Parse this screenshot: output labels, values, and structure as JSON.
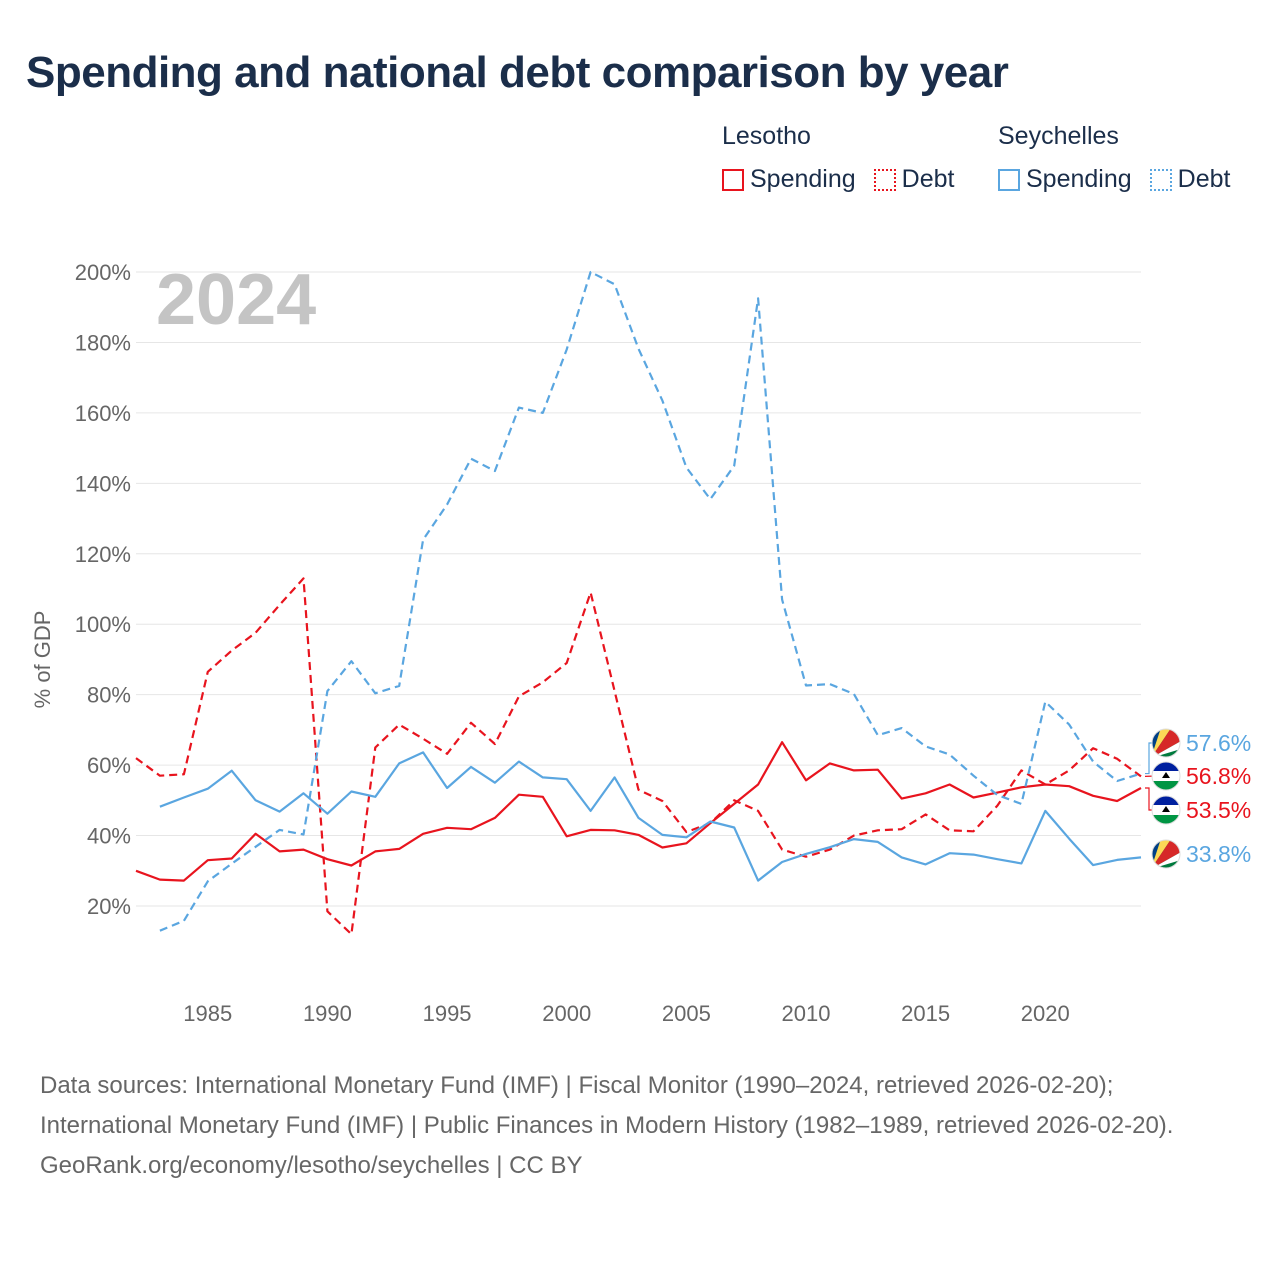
{
  "title": "Spending and national debt comparison by year",
  "legend": {
    "groups": [
      {
        "name": "Lesotho",
        "items": [
          {
            "label": "Spending",
            "style": "solid",
            "color": "#e8141e"
          },
          {
            "label": "Debt",
            "style": "dotted",
            "color": "#e8141e"
          }
        ]
      },
      {
        "name": "Seychelles",
        "items": [
          {
            "label": "Spending",
            "style": "solid",
            "color": "#5aa6e0"
          },
          {
            "label": "Debt",
            "style": "dotted",
            "color": "#5aa6e0"
          }
        ]
      }
    ]
  },
  "colors": {
    "lesotho": "#e8141e",
    "seychelles": "#5aa6e0",
    "year_watermark": "#c4c4c4"
  },
  "chart_data": {
    "type": "line",
    "year_label": "2024",
    "ylabel": "% of GDP",
    "ylim": [
      0,
      200
    ],
    "xlim": [
      1982,
      2024
    ],
    "yticks": [
      20,
      40,
      60,
      80,
      100,
      120,
      140,
      160,
      180,
      200
    ],
    "ytick_labels": [
      "20%",
      "40%",
      "60%",
      "80%",
      "100%",
      "120%",
      "140%",
      "160%",
      "180%",
      "200%"
    ],
    "xticks": [
      1985,
      1990,
      1995,
      2000,
      2005,
      2010,
      2015,
      2020
    ],
    "xtick_labels": [
      "1985",
      "1990",
      "1995",
      "2000",
      "2005",
      "2010",
      "2015",
      "2020"
    ],
    "series": [
      {
        "name": "Lesotho Spending",
        "country": "Lesotho",
        "metric": "Spending",
        "style": "solid",
        "color": "#e8141e",
        "x": [
          1982,
          1983,
          1984,
          1985,
          1986,
          1987,
          1988,
          1989,
          1990,
          1991,
          1992,
          1993,
          1994,
          1995,
          1996,
          1997,
          1998,
          1999,
          2000,
          2001,
          2002,
          2003,
          2004,
          2005,
          2006,
          2007,
          2008,
          2009,
          2010,
          2011,
          2012,
          2013,
          2014,
          2015,
          2016,
          2017,
          2018,
          2019,
          2020,
          2021,
          2022,
          2023,
          2024
        ],
        "values": [
          30,
          27.5,
          27.2,
          33,
          33.5,
          40.5,
          35.5,
          36,
          33.3,
          31.5,
          35.5,
          36.2,
          40.5,
          42.2,
          41.8,
          45,
          51.6,
          51,
          39.8,
          41.6,
          41.5,
          40.2,
          36.6,
          37.8,
          43.5,
          49,
          54.5,
          66.5,
          55.7,
          60.5,
          58.5,
          58.7,
          50.5,
          52,
          54.5,
          50.8,
          52.2,
          53.7,
          54.5,
          54,
          51.3,
          49.8,
          53.5
        ]
      },
      {
        "name": "Lesotho Debt",
        "country": "Lesotho",
        "metric": "Debt",
        "style": "dotted",
        "color": "#e8141e",
        "x": [
          1982,
          1983,
          1984,
          1985,
          1986,
          1987,
          1988,
          1989,
          1990,
          1991,
          1992,
          1993,
          1994,
          1995,
          1996,
          1997,
          1998,
          1999,
          2000,
          2001,
          2002,
          2003,
          2004,
          2005,
          2006,
          2007,
          2008,
          2009,
          2010,
          2011,
          2012,
          2013,
          2014,
          2015,
          2016,
          2017,
          2018,
          2019,
          2020,
          2021,
          2022,
          2023,
          2024
        ],
        "values": [
          62,
          57,
          57.4,
          86.5,
          92.5,
          97.6,
          105.5,
          113,
          18.5,
          12,
          65,
          71.5,
          67.5,
          63.2,
          72,
          66,
          79.5,
          83.5,
          89,
          109,
          81,
          53,
          49.8,
          41,
          43.5,
          50,
          47,
          36,
          34,
          36,
          40,
          41.5,
          41.8,
          46,
          41.5,
          41.2,
          48.5,
          58.5,
          54.5,
          58.5,
          64.8,
          61.8,
          56.8
        ]
      },
      {
        "name": "Seychelles Spending",
        "country": "Seychelles",
        "metric": "Spending",
        "style": "solid",
        "color": "#5aa6e0",
        "x": [
          1983,
          1984,
          1985,
          1986,
          1987,
          1988,
          1989,
          1990,
          1991,
          1992,
          1993,
          1994,
          1995,
          1996,
          1997,
          1998,
          1999,
          2000,
          2001,
          2002,
          2003,
          2004,
          2005,
          2006,
          2007,
          2008,
          2009,
          2010,
          2011,
          2012,
          2013,
          2014,
          2015,
          2016,
          2017,
          2018,
          2019,
          2020,
          2021,
          2022,
          2023,
          2024
        ],
        "values": [
          48.2,
          50.8,
          53.3,
          58.4,
          50,
          46.8,
          52,
          46.2,
          52.5,
          51,
          60.5,
          63.6,
          53.5,
          59.5,
          55,
          61,
          56.5,
          56,
          47,
          56.5,
          45,
          40.2,
          39.5,
          44,
          42.3,
          27.2,
          32.5,
          34.8,
          36.7,
          39,
          38.2,
          33.8,
          31.8,
          35,
          34.6,
          33.3,
          32.1,
          47,
          39.1,
          31.6,
          33.1,
          33.8
        ]
      },
      {
        "name": "Seychelles Debt",
        "country": "Seychelles",
        "metric": "Debt",
        "style": "dotted",
        "color": "#5aa6e0",
        "x": [
          1983,
          1984,
          1985,
          1986,
          1987,
          1988,
          1989,
          1990,
          1991,
          1992,
          1993,
          1994,
          1995,
          1996,
          1997,
          1998,
          1999,
          2000,
          2001,
          2002,
          2003,
          2004,
          2005,
          2006,
          2007,
          2008,
          2009,
          2010,
          2011,
          2012,
          2013,
          2014,
          2015,
          2016,
          2017,
          2018,
          2019,
          2020,
          2021,
          2022,
          2023,
          2024
        ],
        "values": [
          13,
          15.8,
          27,
          32,
          36.8,
          41.6,
          40.3,
          81,
          89.5,
          80.4,
          82.5,
          124,
          134,
          147,
          143.5,
          161.5,
          160,
          178,
          200,
          196.5,
          178.2,
          163.5,
          144.5,
          135.5,
          145,
          192.5,
          107,
          82.6,
          83,
          80.2,
          68.5,
          70.5,
          65.3,
          63,
          57,
          51.5,
          49,
          78,
          71.5,
          61,
          55.5,
          57.6
        ]
      }
    ],
    "end_labels": [
      {
        "text": "57.6%",
        "value": 57.6,
        "color": "#5aa6e0",
        "flag": "seychelles"
      },
      {
        "text": "56.8%",
        "value": 56.8,
        "color": "#e8141e",
        "flag": "lesotho"
      },
      {
        "text": "53.5%",
        "value": 53.5,
        "color": "#e8141e",
        "flag": "lesotho"
      },
      {
        "text": "33.8%",
        "value": 33.8,
        "color": "#5aa6e0",
        "flag": "seychelles"
      }
    ]
  },
  "footer": {
    "sources": "Data sources: International Monetary Fund (IMF) | Fiscal Monitor (1990–2024, retrieved 2026-02-20); International Monetary Fund (IMF) | Public Finances in Modern History (1982–1989, retrieved 2026-02-20).",
    "credit": "GeoRank.org/economy/lesotho/seychelles | CC BY"
  }
}
